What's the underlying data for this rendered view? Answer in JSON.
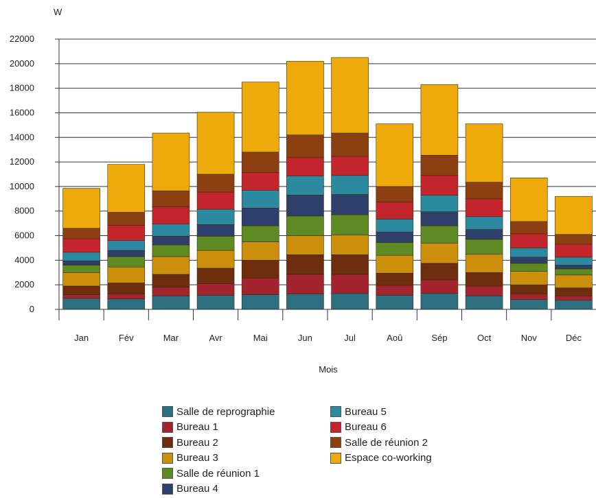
{
  "chart_data": {
    "type": "bar",
    "stacked": true,
    "ylabel": "W",
    "xlabel": "Mois",
    "ylim": [
      0,
      22000
    ],
    "yticks": [
      0,
      2000,
      4000,
      6000,
      8000,
      10000,
      12000,
      14000,
      16000,
      18000,
      20000,
      22000
    ],
    "grid": "horizontal",
    "legend_position": "bottom",
    "categories": [
      "Jan",
      "Fév",
      "Mar",
      "Avr",
      "Mai",
      "Jun",
      "Jul",
      "Aoû",
      "Sép",
      "Oct",
      "Nov",
      "Déc"
    ],
    "series": [
      {
        "name": "Salle de reprographie",
        "color": "#2b6f80",
        "values": [
          900,
          850,
          1100,
          1150,
          1200,
          1250,
          1300,
          1150,
          1300,
          1100,
          800,
          750
        ]
      },
      {
        "name": "Bureau 1",
        "color": "#a3232e",
        "values": [
          300,
          400,
          700,
          950,
          1350,
          1600,
          1550,
          800,
          1100,
          800,
          450,
          350
        ]
      },
      {
        "name": "Bureau 2",
        "color": "#6e2e0e",
        "values": [
          700,
          900,
          1050,
          1250,
          1450,
          1600,
          1600,
          1000,
          1350,
          1100,
          750,
          650
        ]
      },
      {
        "name": "Bureau 3",
        "color": "#cc8f0c",
        "values": [
          1100,
          1300,
          1450,
          1450,
          1500,
          1550,
          1600,
          1450,
          1650,
          1500,
          1100,
          1050
        ]
      },
      {
        "name": "Salle de réunion 1",
        "color": "#5d8a22",
        "values": [
          600,
          850,
          950,
          1150,
          1300,
          1600,
          1650,
          1050,
          1400,
          1200,
          650,
          500
        ]
      },
      {
        "name": "Bureau 4",
        "color": "#2e3f6b",
        "values": [
          350,
          500,
          700,
          950,
          1450,
          1700,
          1650,
          850,
          1150,
          800,
          500,
          300
        ]
      },
      {
        "name": "Bureau 5",
        "color": "#2c8aa0",
        "values": [
          700,
          800,
          1000,
          1250,
          1450,
          1550,
          1550,
          1050,
          1350,
          1050,
          750,
          650
        ]
      },
      {
        "name": "Bureau 6",
        "color": "#c4252d",
        "values": [
          1100,
          1250,
          1400,
          1400,
          1450,
          1500,
          1550,
          1400,
          1600,
          1450,
          1150,
          1050
        ]
      },
      {
        "name": "Salle de réunion 2",
        "color": "#8c3f10",
        "values": [
          850,
          1050,
          1300,
          1450,
          1650,
          1850,
          1900,
          1250,
          1650,
          1350,
          1000,
          800
        ]
      },
      {
        "name": "Espace co-working",
        "color": "#eeaa0b",
        "values": [
          3250,
          3900,
          4700,
          5050,
          5700,
          6000,
          6150,
          5100,
          5750,
          4750,
          3550,
          3100
        ]
      }
    ]
  }
}
